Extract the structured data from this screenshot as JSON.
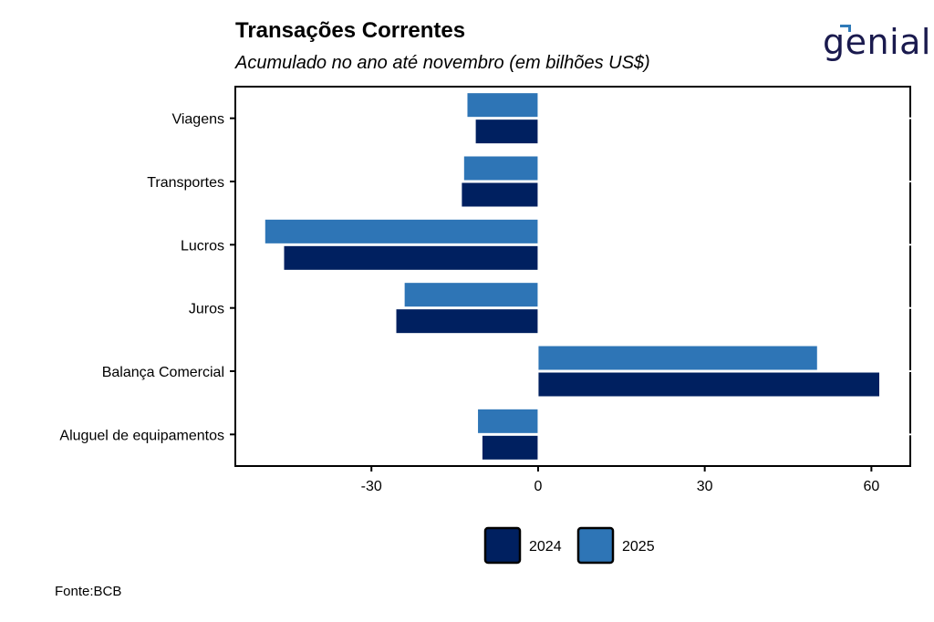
{
  "header": {
    "title": "Transações Correntes",
    "subtitle": "Acumulado no ano até novembro (em bilhões US$)",
    "logo_text": "genial"
  },
  "footer": {
    "source": "Fonte:BCB"
  },
  "colors": {
    "2024": "#002060",
    "2025": "#2e75b6"
  },
  "chart_data": {
    "type": "bar",
    "orientation": "horizontal",
    "categories": [
      "Viagens",
      "Transportes",
      "Lucros",
      "Juros",
      "Balança Comercial",
      "Aluguel de equipamentos"
    ],
    "series": [
      {
        "name": "2025",
        "values": [
          -12.8,
          -13.4,
          -49.2,
          -24.1,
          50.3,
          -10.9
        ]
      },
      {
        "name": "2024",
        "values": [
          -11.3,
          -13.8,
          -45.8,
          -25.6,
          61.5,
          -10.1
        ]
      }
    ],
    "x_ticks": [
      -30,
      0,
      30,
      60
    ],
    "xlim": [
      -54.5,
      67
    ],
    "grid": false,
    "legend": {
      "position": "bottom",
      "entries": [
        "2024",
        "2025"
      ]
    }
  }
}
